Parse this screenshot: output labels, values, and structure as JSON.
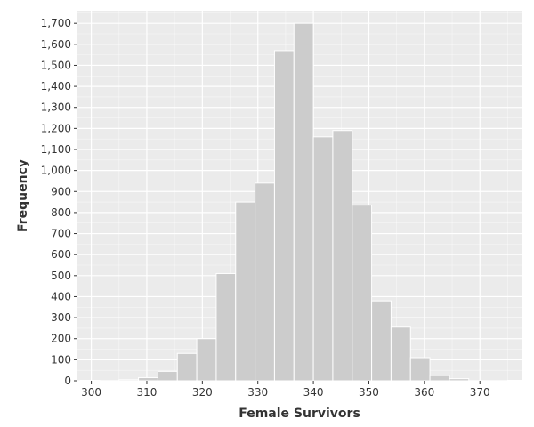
{
  "chart_data": {
    "type": "bar",
    "xlabel": "Female Survivors",
    "ylabel": "Frequency",
    "xlim": [
      297.5,
      377.5
    ],
    "ylim": [
      0,
      1760
    ],
    "bin_width": 3.5,
    "bins": [
      {
        "x0": 298.0,
        "count": 2
      },
      {
        "x0": 301.5,
        "count": 0
      },
      {
        "x0": 305.0,
        "count": 5
      },
      {
        "x0": 308.5,
        "count": 15
      },
      {
        "x0": 312.0,
        "count": 45
      },
      {
        "x0": 315.5,
        "count": 130
      },
      {
        "x0": 319.0,
        "count": 200
      },
      {
        "x0": 322.5,
        "count": 510
      },
      {
        "x0": 326.0,
        "count": 850
      },
      {
        "x0": 329.5,
        "count": 940
      },
      {
        "x0": 333.0,
        "count": 1570
      },
      {
        "x0": 336.5,
        "count": 1700
      },
      {
        "x0": 340.0,
        "count": 1160
      },
      {
        "x0": 343.5,
        "count": 1190
      },
      {
        "x0": 347.0,
        "count": 835
      },
      {
        "x0": 350.5,
        "count": 380
      },
      {
        "x0": 354.0,
        "count": 255
      },
      {
        "x0": 357.5,
        "count": 110
      },
      {
        "x0": 361.0,
        "count": 25
      },
      {
        "x0": 364.5,
        "count": 10
      },
      {
        "x0": 368.0,
        "count": 0
      },
      {
        "x0": 371.5,
        "count": 0
      },
      {
        "x0": 375.0,
        "count": 2
      }
    ],
    "xticks": [
      300,
      310,
      320,
      330,
      340,
      350,
      360,
      370
    ],
    "yticks": [
      0,
      100,
      200,
      300,
      400,
      500,
      600,
      700,
      800,
      900,
      1000,
      1100,
      1200,
      1300,
      1400,
      1500,
      1600,
      1700
    ],
    "ytick_labels": [
      "0",
      "100",
      "200",
      "300",
      "400",
      "500",
      "600",
      "700",
      "800",
      "900",
      "1,000",
      "1,100",
      "1,200",
      "1,300",
      "1,400",
      "1,500",
      "1,600",
      "1,700"
    ],
    "grid": true,
    "colors": {
      "panel": "#ebebeb",
      "grid": "#ffffff",
      "bar": "#cccccc",
      "bar_edge": "#ffffff",
      "text": "#333333"
    }
  }
}
